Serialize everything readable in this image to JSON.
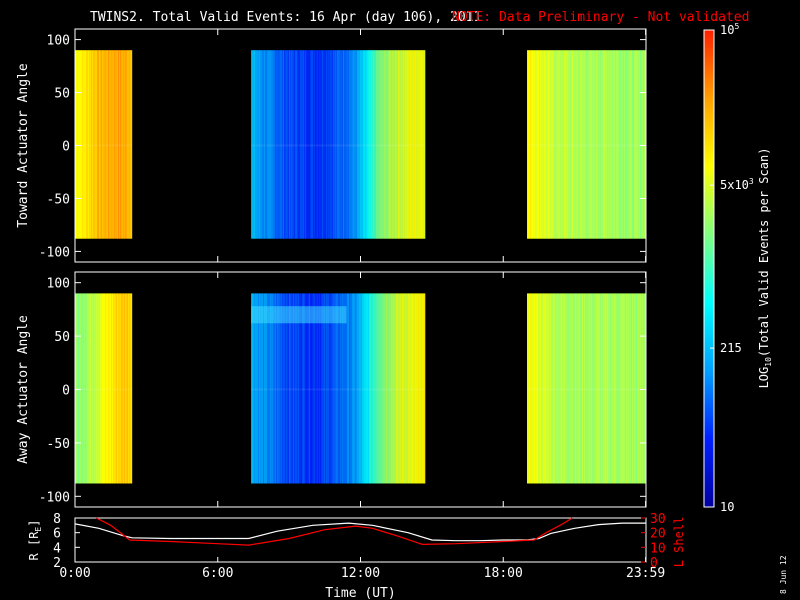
{
  "header": {
    "title": "TWINS2. Total Valid Events: 16 Apr (day 106), 2011",
    "note": "NOTE: Data Preliminary - Not validated"
  },
  "stamp": "8 Jun 12",
  "colors": {
    "background": "#000000",
    "note": "#ff0000",
    "axes": "#ffffff",
    "r_line": "#ffffff",
    "lshell_line": "#ff0000"
  },
  "colorbar": {
    "label_main": "LOG",
    "label_sub": "10",
    "label_rest": "(Total Valid Events per Scan)",
    "scale": "log",
    "range": [
      10,
      100000
    ],
    "stops": [
      "#0000a0",
      "#0020ff",
      "#00a0ff",
      "#00ffff",
      "#80ff80",
      "#ffff00",
      "#ffa000",
      "#ff2000"
    ],
    "ticks": [
      {
        "value": 10,
        "label": "10"
      },
      {
        "value": 215,
        "label": "215"
      },
      {
        "value": 5000,
        "label": "5x10",
        "sup": "3"
      },
      {
        "value": 100000,
        "label": "10",
        "sup": "5"
      }
    ]
  },
  "chart_data": [
    {
      "type": "heatmap",
      "name": "toward",
      "ylabel": "Toward Actuator Angle",
      "ylim": [
        -110,
        110
      ],
      "yticks": [
        100,
        50,
        0,
        -50,
        -100
      ],
      "xlim": [
        0,
        24
      ],
      "y_data_range": [
        -88,
        90
      ],
      "segments": [
        {
          "x": [
            0.0,
            2.4
          ],
          "log_value_profile": [
            3.85,
            3.9,
            4.1,
            4.25,
            4.3,
            4.35,
            4.4,
            4.35,
            4.3
          ]
        },
        {
          "x": [
            7.4,
            14.7
          ],
          "log_value_profile": [
            2.3,
            2.1,
            1.95,
            1.8,
            1.75,
            1.7,
            1.7,
            1.8,
            1.95,
            2.1,
            2.6,
            3.2,
            3.5,
            3.7,
            3.8,
            3.85
          ]
        },
        {
          "x": [
            19.0,
            24.0
          ],
          "log_value_profile": [
            3.9,
            3.75,
            3.6,
            3.55,
            3.5,
            3.45,
            3.5,
            3.45,
            3.4,
            3.45
          ]
        }
      ]
    },
    {
      "type": "heatmap",
      "name": "away",
      "ylabel": "Away Actuator Angle",
      "ylim": [
        -110,
        110
      ],
      "yticks": [
        100,
        50,
        0,
        -50,
        -100
      ],
      "xlim": [
        0,
        24
      ],
      "y_data_range": [
        -88,
        90
      ],
      "segments": [
        {
          "x": [
            0.0,
            2.4
          ],
          "log_value_profile": [
            3.3,
            3.4,
            3.5,
            3.65,
            3.8,
            3.95,
            4.1,
            4.2,
            4.15
          ]
        },
        {
          "x": [
            7.4,
            14.7
          ],
          "log_value_profile": [
            2.3,
            2.1,
            1.95,
            1.8,
            1.75,
            1.7,
            1.7,
            1.8,
            1.95,
            2.1,
            2.6,
            3.2,
            3.5,
            3.7,
            3.8,
            3.85
          ]
        },
        {
          "x": [
            19.0,
            24.0
          ],
          "log_value_profile": [
            3.85,
            3.7,
            3.55,
            3.5,
            3.45,
            3.45,
            3.5,
            3.45,
            3.4,
            3.45
          ]
        }
      ]
    },
    {
      "type": "line",
      "name": "orbit",
      "ylabel": "R [R",
      "ylabel_sub": "E",
      "ylabel_end": "]",
      "ylim": [
        2,
        8
      ],
      "yticks": [
        2,
        4,
        6,
        8
      ],
      "y2label": "L Shell",
      "y2lim": [
        0,
        30
      ],
      "y2ticks": [
        0,
        10,
        20,
        30
      ],
      "xlabel": "Time (UT)",
      "xlim": [
        0,
        24
      ],
      "xticks": [
        {
          "value": 0,
          "label": "0:00"
        },
        {
          "value": 6,
          "label": "6:00"
        },
        {
          "value": 12,
          "label": "12:00"
        },
        {
          "value": 18,
          "label": "18:00"
        },
        {
          "value": 23.983,
          "label": "23:59"
        }
      ],
      "series": [
        {
          "axis": "left",
          "x": [
            0,
            1,
            2,
            2.4,
            4,
            6,
            7.3,
            8.5,
            10,
            11.5,
            12.5,
            14,
            15,
            16,
            17,
            18,
            19,
            19.5,
            20,
            21,
            22,
            23,
            24
          ],
          "y": [
            7.2,
            6.6,
            5.6,
            5.3,
            5.2,
            5.2,
            5.2,
            6.2,
            7.0,
            7.3,
            7.0,
            6.0,
            5.0,
            4.9,
            4.9,
            5.0,
            5.0,
            5.2,
            5.9,
            6.6,
            7.1,
            7.3,
            7.3
          ]
        },
        {
          "axis": "right",
          "x": [
            0.9,
            1.5,
            2.3,
            4,
            6,
            7.3,
            9,
            10.5,
            11.8,
            12.5,
            13.5,
            14.6,
            16,
            18,
            19.3,
            19.8,
            20.5,
            20.9
          ],
          "y": [
            30,
            25,
            15,
            14,
            12.5,
            11.5,
            16,
            22,
            24.5,
            23,
            18,
            12,
            12.5,
            14,
            15,
            20,
            26,
            30
          ]
        }
      ]
    }
  ]
}
